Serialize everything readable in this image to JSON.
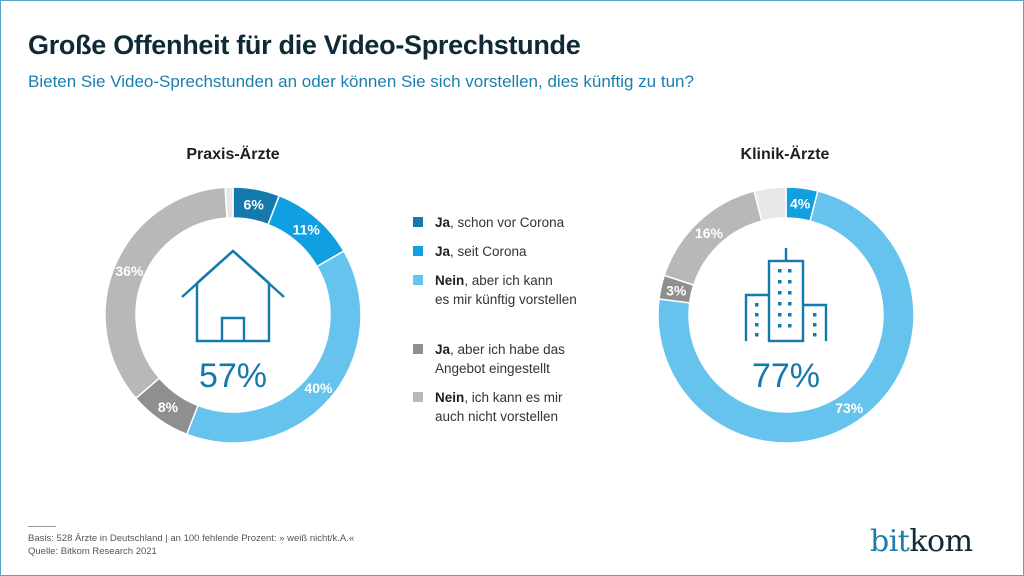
{
  "header": {
    "title": "Große Offenheit für die Video-Sprechstunde",
    "subtitle": "Bieten Sie Video-Sprechstunden an oder können Sie sich vorstellen, dies künftig zu tun?"
  },
  "colors": {
    "ja_vor_corona": "#1479ad",
    "ja_seit_corona": "#109fe0",
    "nein_kuenftig": "#66c3ee",
    "ja_eingestellt": "#8f8f8f",
    "nein_nicht": "#b8b8b8",
    "weiss_nicht": "#e8e8e8",
    "center_text": "#1479ad"
  },
  "chart_data": [
    {
      "type": "pie",
      "variant": "donut",
      "title": "Praxis-Ärzte",
      "center_label": "57%",
      "center_icon": "house-icon",
      "categories": [
        "Ja, schon vor Corona",
        "Ja, seit Corona",
        "Nein, aber ich kann es mir künftig vorstellen",
        "Ja, aber ich habe das Angebot eingestellt",
        "Nein, ich kann es mir auch nicht vorstellen",
        "weiß nicht/k.A."
      ],
      "values": [
        6,
        11,
        40,
        8,
        36,
        1
      ],
      "labels": [
        "6%",
        "11%",
        "40%",
        "8%",
        "36%",
        ""
      ],
      "start": "top",
      "direction": "clockwise"
    },
    {
      "type": "pie",
      "variant": "donut",
      "title": "Klinik-Ärzte",
      "center_label": "77%",
      "center_icon": "buildings-icon",
      "categories": [
        "Ja, seit Corona",
        "Nein, aber ich kann es mir künftig vorstellen",
        "Ja, aber ich habe das Angebot eingestellt",
        "Nein, ich kann es mir auch nicht vorstellen",
        "weiß nicht/k.A."
      ],
      "values": [
        4,
        73,
        3,
        16,
        4
      ],
      "labels": [
        "4%",
        "73%",
        "3%",
        "16%",
        ""
      ],
      "start": "top",
      "direction": "clockwise"
    }
  ],
  "legend": [
    {
      "bold": "Ja",
      "rest": ", schon vor Corona",
      "line2": "",
      "color_key": "ja_vor_corona"
    },
    {
      "bold": "Ja",
      "rest": ", seit Corona",
      "line2": "",
      "color_key": "ja_seit_corona"
    },
    {
      "bold": "Nein",
      "rest": ", aber ich kann",
      "line2": "es mir künftig vorstellen",
      "color_key": "nein_kuenftig"
    },
    {
      "bold": "Ja",
      "rest": ", aber ich habe das",
      "line2": "Angebot eingestellt",
      "color_key": "ja_eingestellt"
    },
    {
      "bold": "Nein",
      "rest": ", ich kann es mir",
      "line2": "auch nicht vorstellen",
      "color_key": "nein_nicht"
    }
  ],
  "footer": {
    "basis": "Basis: 528 Ärzte in Deutschland | an 100 fehlende Prozent: » weiß nicht/k.A.«",
    "quelle": "Quelle: Bitkom Research 2021"
  },
  "logo": {
    "part1": "bit",
    "part2": "kom"
  }
}
